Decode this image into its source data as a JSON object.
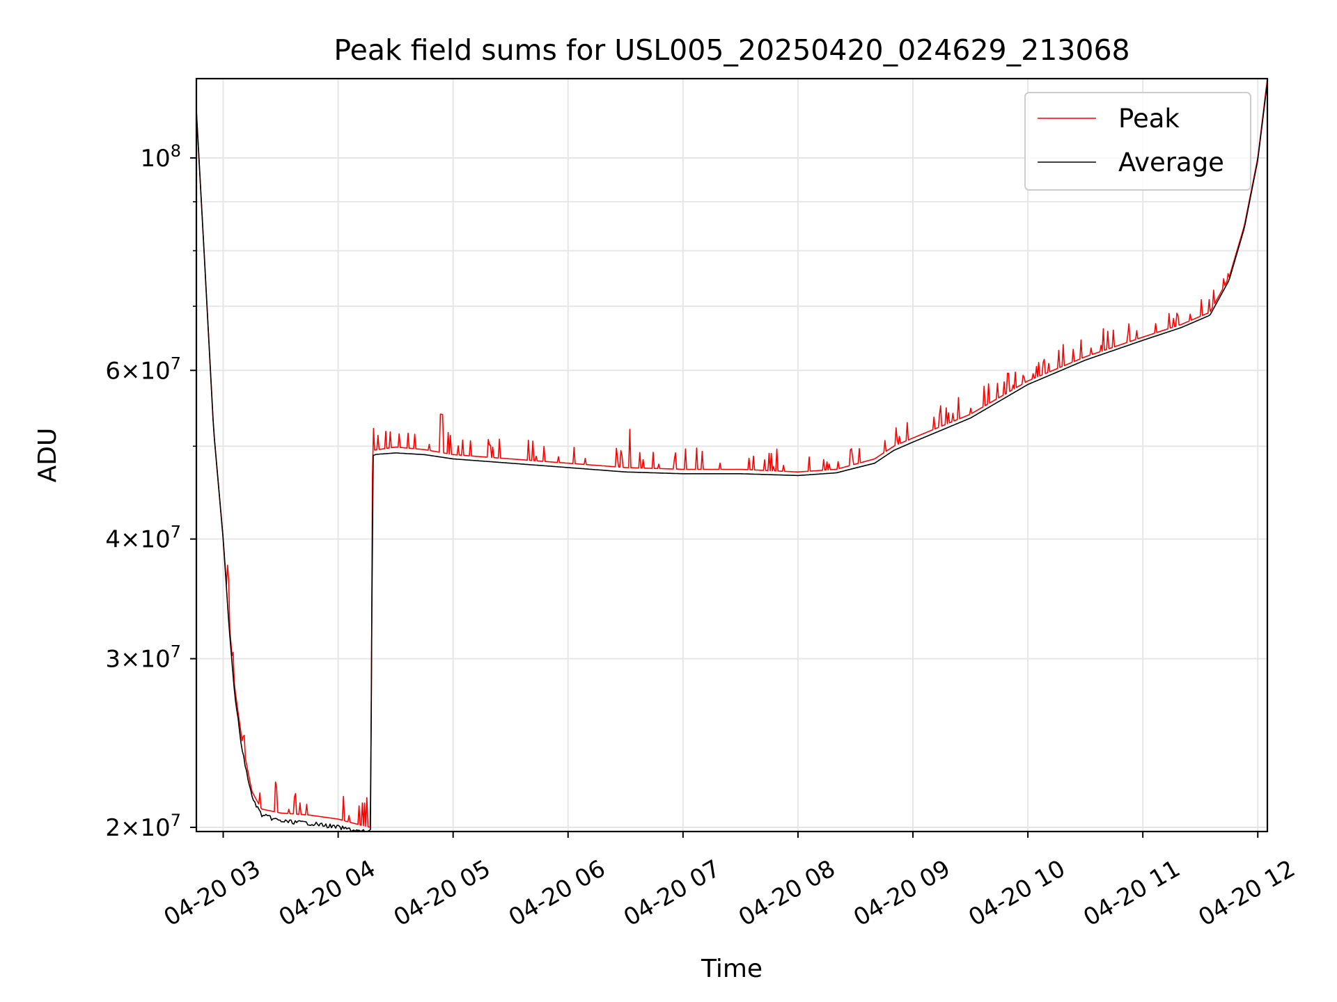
{
  "chart_data": {
    "type": "line",
    "title": "Peak field sums for USL005_20250420_024629_213068",
    "xlabel": "Time",
    "ylabel": "ADU",
    "yscale": "log",
    "grid": true,
    "legend_position": "top-right",
    "xlim": [
      "2025-04-20 02:46",
      "2025-04-20 12:05"
    ],
    "ylim": [
      19800000,
      121000000
    ],
    "x_ticks": [
      {
        "t": "2025-04-20 03:00",
        "label": "04-20 03"
      },
      {
        "t": "2025-04-20 04:00",
        "label": "04-20 04"
      },
      {
        "t": "2025-04-20 05:00",
        "label": "04-20 05"
      },
      {
        "t": "2025-04-20 06:00",
        "label": "04-20 06"
      },
      {
        "t": "2025-04-20 07:00",
        "label": "04-20 07"
      },
      {
        "t": "2025-04-20 08:00",
        "label": "04-20 08"
      },
      {
        "t": "2025-04-20 09:00",
        "label": "04-20 09"
      },
      {
        "t": "2025-04-20 10:00",
        "label": "04-20 10"
      },
      {
        "t": "2025-04-20 11:00",
        "label": "04-20 11"
      },
      {
        "t": "2025-04-20 12:00",
        "label": "04-20 12"
      }
    ],
    "y_ticks": [
      {
        "value": 20000000,
        "base": "2",
        "exp": "7"
      },
      {
        "value": 30000000,
        "base": "3",
        "exp": "7"
      },
      {
        "value": 40000000,
        "base": "4",
        "exp": "7"
      },
      {
        "value": 60000000,
        "base": "6",
        "exp": "7"
      },
      {
        "value": 100000000,
        "base": "",
        "exp": "8"
      }
    ],
    "y_minor_ticks": [
      50000000,
      70000000,
      80000000,
      90000000
    ],
    "series": [
      {
        "name": "Peak",
        "color": "#ff0000",
        "spiky": true,
        "points": [
          [
            "2025-04-20 02:46",
            112000000
          ],
          [
            "2025-04-20 02:50",
            80000000
          ],
          [
            "2025-04-20 02:55",
            52000000
          ],
          [
            "2025-04-20 03:00",
            40000000
          ],
          [
            "2025-04-20 03:03",
            33000000
          ],
          [
            "2025-04-20 03:06",
            28000000
          ],
          [
            "2025-04-20 03:10",
            24500000
          ],
          [
            "2025-04-20 03:15",
            21800000
          ],
          [
            "2025-04-20 03:20",
            20900000
          ],
          [
            "2025-04-20 03:30",
            20700000
          ],
          [
            "2025-04-20 03:45",
            20600000
          ],
          [
            "2025-04-20 04:00",
            20400000
          ],
          [
            "2025-04-20 04:12",
            20100000
          ],
          [
            "2025-04-20 04:17",
            20000000
          ],
          [
            "2025-04-20 04:18",
            49500000
          ],
          [
            "2025-04-20 04:30",
            49900000
          ],
          [
            "2025-04-20 04:45",
            49600000
          ],
          [
            "2025-04-20 05:00",
            49000000
          ],
          [
            "2025-04-20 05:30",
            48500000
          ],
          [
            "2025-04-20 06:00",
            48000000
          ],
          [
            "2025-04-20 06:30",
            47500000
          ],
          [
            "2025-04-20 07:00",
            47300000
          ],
          [
            "2025-04-20 07:30",
            47300000
          ],
          [
            "2025-04-20 08:00",
            47000000
          ],
          [
            "2025-04-20 08:20",
            47300000
          ],
          [
            "2025-04-20 08:40",
            48500000
          ],
          [
            "2025-04-20 08:50",
            50000000
          ],
          [
            "2025-04-20 09:00",
            51000000
          ],
          [
            "2025-04-20 09:30",
            54000000
          ],
          [
            "2025-04-20 10:00",
            58500000
          ],
          [
            "2025-04-20 10:30",
            62000000
          ],
          [
            "2025-04-20 11:00",
            65000000
          ],
          [
            "2025-04-20 11:20",
            67000000
          ],
          [
            "2025-04-20 11:35",
            69000000
          ],
          [
            "2025-04-20 11:45",
            75000000
          ],
          [
            "2025-04-20 11:53",
            85000000
          ],
          [
            "2025-04-20 12:00",
            100000000
          ],
          [
            "2025-04-20 12:05",
            121000000
          ]
        ]
      },
      {
        "name": "Average",
        "color": "#000000",
        "spiky": false,
        "points": [
          [
            "2025-04-20 02:46",
            112000000
          ],
          [
            "2025-04-20 02:50",
            80000000
          ],
          [
            "2025-04-20 02:55",
            52000000
          ],
          [
            "2025-04-20 03:00",
            40000000
          ],
          [
            "2025-04-20 03:03",
            32500000
          ],
          [
            "2025-04-20 03:06",
            27500000
          ],
          [
            "2025-04-20 03:10",
            24000000
          ],
          [
            "2025-04-20 03:15",
            21500000
          ],
          [
            "2025-04-20 03:20",
            20600000
          ],
          [
            "2025-04-20 03:30",
            20300000
          ],
          [
            "2025-04-20 03:45",
            20200000
          ],
          [
            "2025-04-20 04:00",
            20000000
          ],
          [
            "2025-04-20 04:12",
            19800000
          ],
          [
            "2025-04-20 04:17",
            19800000
          ],
          [
            "2025-04-20 04:18",
            49000000
          ],
          [
            "2025-04-20 04:30",
            49200000
          ],
          [
            "2025-04-20 04:45",
            49000000
          ],
          [
            "2025-04-20 05:00",
            48500000
          ],
          [
            "2025-04-20 05:30",
            48000000
          ],
          [
            "2025-04-20 06:00",
            47500000
          ],
          [
            "2025-04-20 06:30",
            47000000
          ],
          [
            "2025-04-20 07:00",
            46800000
          ],
          [
            "2025-04-20 07:30",
            46800000
          ],
          [
            "2025-04-20 08:00",
            46600000
          ],
          [
            "2025-04-20 08:20",
            46900000
          ],
          [
            "2025-04-20 08:40",
            48000000
          ],
          [
            "2025-04-20 08:50",
            49500000
          ],
          [
            "2025-04-20 09:00",
            50500000
          ],
          [
            "2025-04-20 09:30",
            53500000
          ],
          [
            "2025-04-20 10:00",
            58000000
          ],
          [
            "2025-04-20 10:30",
            61500000
          ],
          [
            "2025-04-20 11:00",
            64500000
          ],
          [
            "2025-04-20 11:20",
            66500000
          ],
          [
            "2025-04-20 11:35",
            68500000
          ],
          [
            "2025-04-20 11:45",
            74500000
          ],
          [
            "2025-04-20 11:53",
            84500000
          ],
          [
            "2025-04-20 12:00",
            99500000
          ],
          [
            "2025-04-20 12:05",
            120000000
          ]
        ]
      }
    ]
  }
}
